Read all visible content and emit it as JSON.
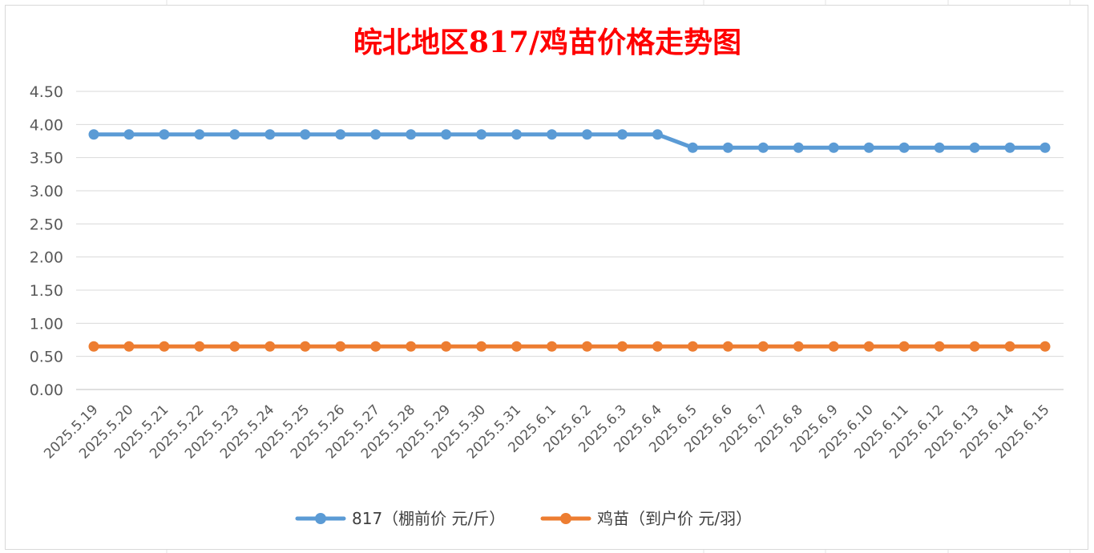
{
  "chart_data": {
    "type": "line",
    "title": "皖北地区817/鸡苗价格走势图",
    "title_color": "#ff0000",
    "categories": [
      "2025.5.19",
      "2025.5.20",
      "2025.5.21",
      "2025.5.22",
      "2025.5.23",
      "2025.5.24",
      "2025.5.25",
      "2025.5.26",
      "2025.5.27",
      "2025.5.28",
      "2025.5.29",
      "2025.5.30",
      "2025.5.31",
      "2025.6.1",
      "2025.6.2",
      "2025.6.3",
      "2025.6.4",
      "2025.6.5",
      "2025.6.6",
      "2025.6.7",
      "2025.6.8",
      "2025.6.9",
      "2025.6.10",
      "2025.6.11",
      "2025.6.12",
      "2025.6.13",
      "2025.6.14",
      "2025.6.15"
    ],
    "ylim": [
      0,
      4.5
    ],
    "yticks": [
      "0.00",
      "0.50",
      "1.00",
      "1.50",
      "2.00",
      "2.50",
      "3.00",
      "3.50",
      "4.00",
      "4.50"
    ],
    "grid": true,
    "legend_position": "bottom",
    "series": [
      {
        "name": "817（棚前价 元/斤）",
        "color": "#5b9bd5",
        "values": [
          3.85,
          3.85,
          3.85,
          3.85,
          3.85,
          3.85,
          3.85,
          3.85,
          3.85,
          3.85,
          3.85,
          3.85,
          3.85,
          3.85,
          3.85,
          3.85,
          3.85,
          3.65,
          3.65,
          3.65,
          3.65,
          3.65,
          3.65,
          3.65,
          3.65,
          3.65,
          3.65,
          3.65
        ]
      },
      {
        "name": "鸡苗（到户价 元/羽）",
        "color": "#ed7d31",
        "values": [
          0.65,
          0.65,
          0.65,
          0.65,
          0.65,
          0.65,
          0.65,
          0.65,
          0.65,
          0.65,
          0.65,
          0.65,
          0.65,
          0.65,
          0.65,
          0.65,
          0.65,
          0.65,
          0.65,
          0.65,
          0.65,
          0.65,
          0.65,
          0.65,
          0.65,
          0.65,
          0.65,
          0.65
        ]
      }
    ]
  }
}
